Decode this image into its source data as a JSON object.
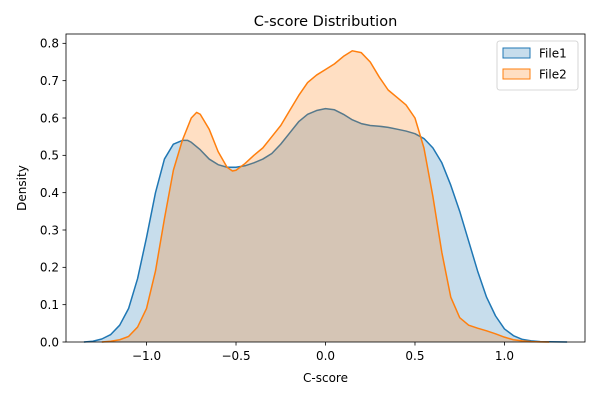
{
  "chart_data": {
    "type": "area",
    "title": "C-score Distribution",
    "xlabel": "C-score",
    "ylabel": "Density",
    "xlim": [
      -1.45,
      1.45
    ],
    "ylim": [
      0,
      0.825
    ],
    "xticks": [
      -1.0,
      -0.5,
      0.0,
      0.5,
      1.0
    ],
    "xtick_labels": [
      "−1.0",
      "−0.5",
      "0.0",
      "0.5",
      "1.0"
    ],
    "yticks": [
      0.0,
      0.1,
      0.2,
      0.3,
      0.4,
      0.5,
      0.6,
      0.7,
      0.8
    ],
    "ytick_labels": [
      "0.0",
      "0.1",
      "0.2",
      "0.3",
      "0.4",
      "0.5",
      "0.6",
      "0.7",
      "0.8"
    ],
    "grid": false,
    "legend_position": "top-right",
    "series": [
      {
        "name": "File1",
        "line_color": "#1f77b4",
        "fill_color": "#1f77b4",
        "fill_opacity": 0.25,
        "x": [
          -1.35,
          -1.3,
          -1.25,
          -1.2,
          -1.15,
          -1.1,
          -1.05,
          -1.0,
          -0.95,
          -0.9,
          -0.85,
          -0.8,
          -0.77,
          -0.75,
          -0.7,
          -0.65,
          -0.6,
          -0.55,
          -0.5,
          -0.45,
          -0.4,
          -0.35,
          -0.3,
          -0.25,
          -0.2,
          -0.15,
          -0.1,
          -0.05,
          0.0,
          0.05,
          0.1,
          0.15,
          0.2,
          0.25,
          0.3,
          0.35,
          0.4,
          0.45,
          0.5,
          0.55,
          0.6,
          0.65,
          0.7,
          0.75,
          0.8,
          0.85,
          0.9,
          0.95,
          1.0,
          1.05,
          1.1,
          1.15,
          1.2,
          1.25,
          1.3,
          1.35
        ],
        "y": [
          0.0,
          0.002,
          0.008,
          0.02,
          0.045,
          0.09,
          0.17,
          0.28,
          0.4,
          0.49,
          0.53,
          0.54,
          0.54,
          0.535,
          0.515,
          0.49,
          0.475,
          0.468,
          0.468,
          0.472,
          0.48,
          0.49,
          0.505,
          0.53,
          0.56,
          0.59,
          0.61,
          0.62,
          0.625,
          0.622,
          0.61,
          0.595,
          0.585,
          0.58,
          0.578,
          0.575,
          0.57,
          0.565,
          0.558,
          0.545,
          0.52,
          0.48,
          0.42,
          0.35,
          0.27,
          0.19,
          0.12,
          0.07,
          0.035,
          0.017,
          0.007,
          0.003,
          0.001,
          0.0005,
          0.0002,
          0.0
        ]
      },
      {
        "name": "File2",
        "line_color": "#ff7f0e",
        "fill_color": "#ff7f0e",
        "fill_opacity": 0.25,
        "x": [
          -1.25,
          -1.2,
          -1.15,
          -1.1,
          -1.05,
          -1.0,
          -0.95,
          -0.9,
          -0.85,
          -0.8,
          -0.75,
          -0.72,
          -0.7,
          -0.65,
          -0.6,
          -0.55,
          -0.52,
          -0.5,
          -0.45,
          -0.4,
          -0.35,
          -0.3,
          -0.25,
          -0.2,
          -0.15,
          -0.1,
          -0.05,
          0.0,
          0.05,
          0.1,
          0.15,
          0.2,
          0.25,
          0.3,
          0.35,
          0.4,
          0.45,
          0.5,
          0.55,
          0.6,
          0.65,
          0.7,
          0.75,
          0.8,
          0.85,
          0.9,
          0.95,
          1.0,
          1.05,
          1.1,
          1.15,
          1.2,
          1.25
        ],
        "y": [
          0.0,
          0.002,
          0.006,
          0.015,
          0.04,
          0.09,
          0.19,
          0.33,
          0.46,
          0.54,
          0.6,
          0.615,
          0.61,
          0.57,
          0.51,
          0.468,
          0.458,
          0.46,
          0.478,
          0.5,
          0.52,
          0.55,
          0.58,
          0.62,
          0.66,
          0.695,
          0.715,
          0.73,
          0.745,
          0.765,
          0.78,
          0.775,
          0.75,
          0.71,
          0.675,
          0.655,
          0.635,
          0.6,
          0.52,
          0.39,
          0.24,
          0.12,
          0.065,
          0.045,
          0.037,
          0.03,
          0.022,
          0.013,
          0.006,
          0.003,
          0.001,
          0.0004,
          0.0
        ]
      }
    ]
  }
}
